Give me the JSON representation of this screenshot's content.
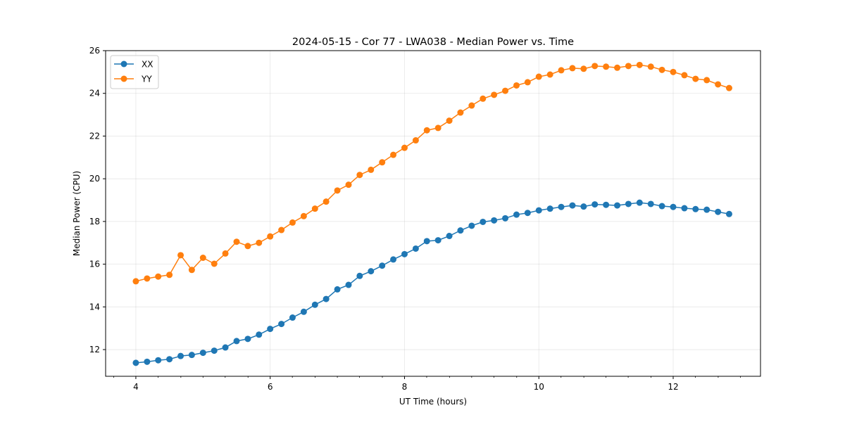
{
  "chart_data": {
    "type": "line",
    "title": "2024-05-15 - Cor 77 - LWA038 - Median Power vs. Time",
    "xlabel": "UT Time (hours)",
    "ylabel": "Median Power (CPU)",
    "xlim": [
      3.55,
      13.3
    ],
    "ylim": [
      10.75,
      26
    ],
    "x_ticks": [
      4,
      6,
      8,
      10,
      12
    ],
    "x_minor_ticks": [
      3.67,
      4.33,
      4.67,
      5,
      5.33,
      5.67,
      6.33,
      6.67,
      7,
      7.33,
      7.67,
      8.33,
      8.67,
      9,
      9.33,
      9.67,
      10.33,
      10.67,
      11,
      11.33,
      11.67,
      12.33,
      12.67,
      13
    ],
    "y_ticks": [
      12,
      14,
      16,
      18,
      20,
      22,
      24,
      26
    ],
    "grid": true,
    "legend_position": "upper-left",
    "x": [
      4.0,
      4.167,
      4.333,
      4.5,
      4.667,
      4.833,
      5.0,
      5.167,
      5.333,
      5.5,
      5.667,
      5.833,
      6.0,
      6.167,
      6.333,
      6.5,
      6.667,
      6.833,
      7.0,
      7.167,
      7.333,
      7.5,
      7.667,
      7.833,
      8.0,
      8.167,
      8.333,
      8.5,
      8.667,
      8.833,
      9.0,
      9.167,
      9.333,
      9.5,
      9.667,
      9.833,
      10.0,
      10.167,
      10.333,
      10.5,
      10.667,
      10.833,
      11.0,
      11.167,
      11.333,
      11.5,
      11.667,
      11.833,
      12.0,
      12.167,
      12.333,
      12.5,
      12.667,
      12.833
    ],
    "series": [
      {
        "name": "XX",
        "color": "#1f77b4",
        "values": [
          11.38,
          11.43,
          11.5,
          11.55,
          11.7,
          11.75,
          11.85,
          11.95,
          12.1,
          12.4,
          12.5,
          12.7,
          12.97,
          13.2,
          13.5,
          13.77,
          14.1,
          14.37,
          14.82,
          15.03,
          15.45,
          15.67,
          15.93,
          16.22,
          16.47,
          16.73,
          17.08,
          17.12,
          17.32,
          17.58,
          17.8,
          17.98,
          18.05,
          18.15,
          18.32,
          18.4,
          18.52,
          18.6,
          18.68,
          18.75,
          18.7,
          18.8,
          18.78,
          18.75,
          18.82,
          18.88,
          18.82,
          18.72,
          18.68,
          18.62,
          18.58,
          18.55,
          18.45,
          18.35
        ]
      },
      {
        "name": "YY",
        "color": "#ff7f0e",
        "values": [
          15.2,
          15.33,
          15.42,
          15.5,
          16.42,
          15.73,
          16.3,
          16.02,
          16.5,
          17.05,
          16.85,
          17.0,
          17.3,
          17.6,
          17.95,
          18.25,
          18.6,
          18.93,
          19.45,
          19.72,
          20.18,
          20.42,
          20.77,
          21.12,
          21.45,
          21.8,
          22.27,
          22.38,
          22.72,
          23.1,
          23.43,
          23.75,
          23.93,
          24.12,
          24.37,
          24.52,
          24.78,
          24.88,
          25.08,
          25.18,
          25.15,
          25.28,
          25.25,
          25.2,
          25.28,
          25.33,
          25.25,
          25.1,
          25.0,
          24.85,
          24.68,
          24.62,
          24.42,
          24.25
        ]
      }
    ]
  }
}
